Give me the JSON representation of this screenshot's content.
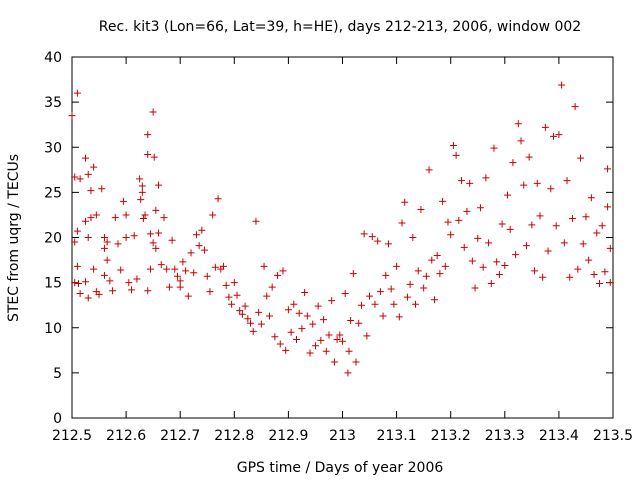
{
  "chart_data": {
    "type": "scatter",
    "title": "Rec. kit3 (Lon=66, Lat=39, h=HE), days 212-213, 2006, window 002",
    "xlabel": "GPS time / Days of year 2006",
    "ylabel": "STEC from uqrg / TECUs",
    "xlim": [
      212.5,
      213.5
    ],
    "ylim": [
      0,
      40
    ],
    "x_ticks": [
      212.5,
      212.6,
      212.7,
      212.8,
      212.9,
      213,
      213.1,
      213.2,
      213.3,
      213.4,
      213.5
    ],
    "x_tick_labels": [
      "212.5",
      "212.6",
      "212.7",
      "212.8",
      "212.9",
      "213",
      "213.1",
      "213.2",
      "213.3",
      "213.4",
      "213.5"
    ],
    "y_ticks": [
      0,
      5,
      10,
      15,
      20,
      25,
      30,
      35,
      40
    ],
    "y_tick_labels": [
      "0",
      "5",
      "10",
      "15",
      "20",
      "25",
      "30",
      "35",
      "40"
    ],
    "grid": false,
    "marker": "+",
    "marker_color": "#cc0000",
    "series": [
      {
        "points": [
          [
            212.5,
            33.5
          ],
          [
            212.505,
            26.7
          ],
          [
            212.51,
            36.0
          ],
          [
            212.515,
            26.5
          ],
          [
            212.51,
            20.7
          ],
          [
            212.505,
            19.5
          ],
          [
            212.51,
            16.8
          ],
          [
            212.505,
            15.0
          ],
          [
            212.512,
            14.9
          ],
          [
            212.515,
            13.8
          ],
          [
            212.525,
            28.8
          ],
          [
            212.53,
            27.0
          ],
          [
            212.535,
            25.2
          ],
          [
            212.54,
            27.8
          ],
          [
            212.545,
            22.5
          ],
          [
            212.535,
            22.2
          ],
          [
            212.525,
            21.8
          ],
          [
            212.53,
            20.0
          ],
          [
            212.525,
            15.1
          ],
          [
            212.53,
            13.3
          ],
          [
            212.54,
            16.5
          ],
          [
            212.545,
            14.0
          ],
          [
            212.55,
            13.7
          ],
          [
            212.555,
            25.4
          ],
          [
            212.56,
            20.0
          ],
          [
            212.565,
            19.5
          ],
          [
            212.56,
            18.8
          ],
          [
            212.565,
            17.5
          ],
          [
            212.56,
            15.8
          ],
          [
            212.57,
            15.2
          ],
          [
            212.575,
            14.1
          ],
          [
            212.58,
            22.2
          ],
          [
            212.585,
            19.3
          ],
          [
            212.59,
            16.4
          ],
          [
            212.595,
            24.0
          ],
          [
            212.6,
            22.5
          ],
          [
            212.6,
            20.0
          ],
          [
            212.605,
            15.0
          ],
          [
            212.61,
            14.2
          ],
          [
            212.615,
            20.2
          ],
          [
            212.62,
            15.4
          ],
          [
            212.625,
            26.5
          ],
          [
            212.63,
            25.7
          ],
          [
            212.63,
            25.0
          ],
          [
            212.627,
            24.2
          ],
          [
            212.632,
            22.1
          ],
          [
            212.635,
            22.5
          ],
          [
            212.64,
            31.4
          ],
          [
            212.64,
            29.2
          ],
          [
            212.65,
            33.9
          ],
          [
            212.652,
            28.9
          ],
          [
            212.655,
            23.0
          ],
          [
            212.645,
            20.4
          ],
          [
            212.65,
            19.4
          ],
          [
            212.655,
            18.8
          ],
          [
            212.645,
            16.5
          ],
          [
            212.64,
            14.1
          ],
          [
            212.66,
            25.8
          ],
          [
            212.66,
            20.5
          ],
          [
            212.665,
            17.0
          ],
          [
            212.67,
            22.2
          ],
          [
            212.675,
            16.5
          ],
          [
            212.68,
            14.5
          ],
          [
            212.685,
            19.7
          ],
          [
            212.69,
            16.5
          ],
          [
            212.695,
            15.7
          ],
          [
            212.7,
            15.2
          ],
          [
            212.7,
            14.5
          ],
          [
            212.705,
            17.3
          ],
          [
            212.71,
            16.3
          ],
          [
            212.715,
            13.5
          ],
          [
            212.72,
            18.3
          ],
          [
            212.725,
            16.1
          ],
          [
            212.73,
            20.3
          ],
          [
            212.735,
            19.1
          ],
          [
            212.74,
            20.8
          ],
          [
            212.745,
            18.6
          ],
          [
            212.75,
            15.7
          ],
          [
            212.755,
            14.0
          ],
          [
            212.76,
            22.5
          ],
          [
            212.765,
            16.7
          ],
          [
            212.77,
            24.3
          ],
          [
            212.775,
            16.5
          ],
          [
            212.78,
            16.8
          ],
          [
            212.785,
            14.7
          ],
          [
            212.79,
            13.4
          ],
          [
            212.795,
            12.6
          ],
          [
            212.8,
            15.0
          ],
          [
            212.805,
            13.6
          ],
          [
            212.81,
            11.9
          ],
          [
            212.815,
            11.5
          ],
          [
            212.82,
            12.4
          ],
          [
            212.825,
            11.0
          ],
          [
            212.83,
            10.5
          ],
          [
            212.835,
            9.6
          ],
          [
            212.84,
            21.8
          ],
          [
            212.845,
            11.7
          ],
          [
            212.85,
            10.4
          ],
          [
            212.855,
            16.8
          ],
          [
            212.86,
            13.5
          ],
          [
            212.865,
            11.3
          ],
          [
            212.87,
            14.5
          ],
          [
            212.875,
            9.0
          ],
          [
            212.88,
            15.8
          ],
          [
            212.885,
            8.2
          ],
          [
            212.89,
            16.3
          ],
          [
            212.895,
            7.5
          ],
          [
            212.9,
            12.0
          ],
          [
            212.905,
            9.5
          ],
          [
            212.91,
            12.6
          ],
          [
            212.915,
            8.7
          ],
          [
            212.92,
            11.6
          ],
          [
            212.925,
            9.9
          ],
          [
            212.93,
            13.9
          ],
          [
            212.935,
            11.3
          ],
          [
            212.94,
            7.2
          ],
          [
            212.945,
            10.4
          ],
          [
            212.95,
            8.0
          ],
          [
            212.955,
            12.4
          ],
          [
            212.96,
            8.6
          ],
          [
            212.965,
            10.9
          ],
          [
            212.97,
            7.4
          ],
          [
            212.975,
            9.2
          ],
          [
            212.98,
            13.0
          ],
          [
            212.985,
            6.2
          ],
          [
            212.99,
            8.7
          ],
          [
            212.995,
            9.2
          ],
          [
            213.0,
            8.5
          ],
          [
            213.005,
            13.8
          ],
          [
            213.01,
            5.0
          ],
          [
            213.012,
            7.4
          ],
          [
            213.015,
            10.8
          ],
          [
            213.02,
            16.0
          ],
          [
            213.025,
            6.2
          ],
          [
            213.03,
            10.5
          ],
          [
            213.035,
            12.5
          ],
          [
            213.04,
            20.4
          ],
          [
            213.045,
            9.1
          ],
          [
            213.05,
            13.5
          ],
          [
            213.055,
            20.1
          ],
          [
            213.06,
            12.6
          ],
          [
            213.065,
            19.6
          ],
          [
            213.07,
            14.0
          ],
          [
            213.075,
            11.3
          ],
          [
            213.08,
            15.8
          ],
          [
            213.085,
            19.3
          ],
          [
            213.09,
            14.3
          ],
          [
            213.095,
            12.6
          ],
          [
            213.1,
            16.8
          ],
          [
            213.105,
            11.2
          ],
          [
            213.11,
            21.6
          ],
          [
            213.115,
            23.9
          ],
          [
            213.12,
            13.4
          ],
          [
            213.125,
            14.8
          ],
          [
            213.13,
            20.0
          ],
          [
            213.135,
            12.6
          ],
          [
            213.14,
            16.3
          ],
          [
            213.145,
            23.1
          ],
          [
            213.15,
            14.4
          ],
          [
            213.155,
            15.7
          ],
          [
            213.16,
            27.5
          ],
          [
            213.165,
            17.5
          ],
          [
            213.17,
            13.1
          ],
          [
            213.175,
            18.0
          ],
          [
            213.18,
            16.0
          ],
          [
            213.185,
            24.0
          ],
          [
            213.19,
            16.8
          ],
          [
            213.195,
            21.7
          ],
          [
            213.2,
            20.3
          ],
          [
            213.205,
            30.2
          ],
          [
            213.21,
            29.1
          ],
          [
            213.215,
            21.9
          ],
          [
            213.22,
            26.3
          ],
          [
            213.225,
            18.9
          ],
          [
            213.23,
            22.9
          ],
          [
            213.235,
            26.0
          ],
          [
            213.24,
            17.4
          ],
          [
            213.245,
            14.4
          ],
          [
            213.25,
            19.9
          ],
          [
            213.255,
            23.3
          ],
          [
            213.26,
            16.7
          ],
          [
            213.265,
            26.6
          ],
          [
            213.27,
            19.4
          ],
          [
            213.275,
            14.9
          ],
          [
            213.28,
            29.9
          ],
          [
            213.285,
            17.3
          ],
          [
            213.29,
            15.9
          ],
          [
            213.295,
            21.5
          ],
          [
            213.3,
            16.9
          ],
          [
            213.305,
            24.7
          ],
          [
            213.31,
            20.9
          ],
          [
            213.315,
            28.3
          ],
          [
            213.32,
            18.1
          ],
          [
            213.325,
            32.6
          ],
          [
            213.33,
            30.7
          ],
          [
            213.335,
            25.8
          ],
          [
            213.34,
            19.1
          ],
          [
            213.345,
            28.9
          ],
          [
            213.35,
            21.4
          ],
          [
            213.355,
            16.3
          ],
          [
            213.36,
            26.0
          ],
          [
            213.365,
            22.4
          ],
          [
            213.37,
            15.6
          ],
          [
            213.375,
            32.2
          ],
          [
            213.38,
            18.5
          ],
          [
            213.385,
            25.4
          ],
          [
            213.39,
            31.2
          ],
          [
            213.395,
            21.3
          ],
          [
            213.4,
            31.4
          ],
          [
            213.405,
            36.9
          ],
          [
            213.41,
            19.4
          ],
          [
            213.415,
            26.3
          ],
          [
            213.42,
            15.6
          ],
          [
            213.425,
            22.1
          ],
          [
            213.43,
            34.5
          ],
          [
            213.435,
            16.5
          ],
          [
            213.44,
            28.8
          ],
          [
            213.445,
            19.3
          ],
          [
            213.45,
            22.3
          ],
          [
            213.455,
            17.5
          ],
          [
            213.46,
            24.4
          ],
          [
            213.465,
            15.9
          ],
          [
            213.47,
            20.5
          ],
          [
            213.475,
            14.9
          ],
          [
            213.48,
            21.3
          ],
          [
            213.485,
            16.2
          ],
          [
            213.49,
            27.6
          ],
          [
            213.495,
            18.8
          ],
          [
            213.49,
            23.4
          ],
          [
            213.495,
            15.0
          ]
        ]
      }
    ]
  }
}
